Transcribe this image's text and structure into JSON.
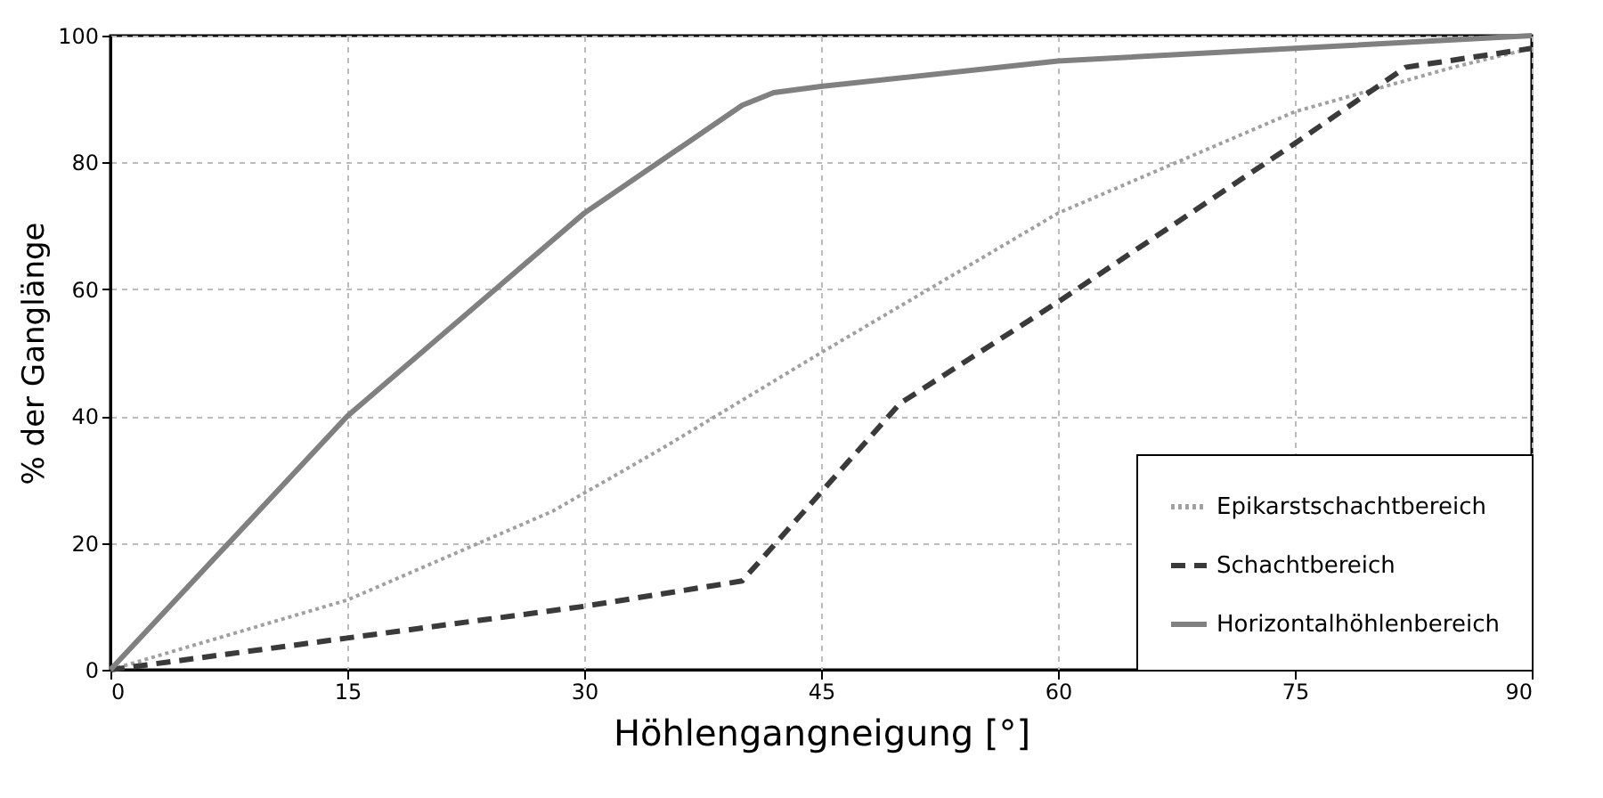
{
  "chart_data": {
    "type": "line",
    "xlabel": "Höhlengangneigung [°]",
    "ylabel": "% der Ganglänge",
    "xlim": [
      0,
      90
    ],
    "xticks": [
      0,
      15,
      30,
      45,
      60,
      75,
      90
    ],
    "ylim": [
      0,
      100
    ],
    "yticks": [
      0,
      20,
      40,
      60,
      80,
      100
    ],
    "grid": true,
    "legend": "bottom right",
    "marker": "none",
    "series": [
      {
        "name": "Epikarstschachtbereich",
        "color": "#a0a0a0",
        "line_style": "dotted",
        "x": [
          0,
          15,
          28,
          35,
          45,
          60,
          75,
          85,
          90
        ],
        "values": [
          0,
          11,
          25,
          35,
          50,
          72,
          88,
          95,
          98
        ]
      },
      {
        "name": "Schachtbereich",
        "color": "#3a3a3a",
        "line_style": "dashed",
        "x": [
          0,
          15,
          30,
          40,
          45,
          50,
          60,
          75,
          82,
          90
        ],
        "values": [
          0,
          5,
          10,
          14,
          28,
          42,
          58,
          83,
          95,
          98
        ]
      },
      {
        "name": "Horizontalhöhlenbereich",
        "color": "#808080",
        "line_style": "solid",
        "x": [
          0,
          15,
          30,
          40,
          42,
          45,
          60,
          75,
          90
        ],
        "values": [
          0,
          40,
          72,
          89,
          91,
          92,
          96,
          98,
          100
        ]
      }
    ]
  }
}
